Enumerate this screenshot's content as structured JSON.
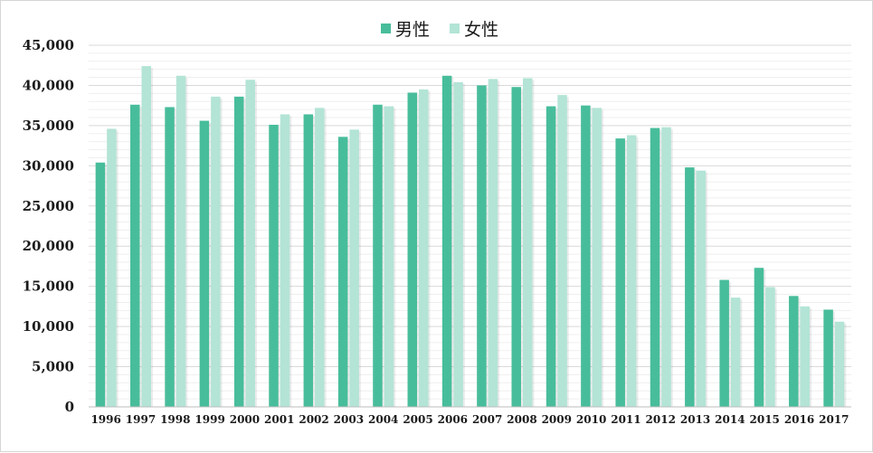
{
  "chart_data": {
    "type": "bar",
    "categories": [
      "1996",
      "1997",
      "1998",
      "1999",
      "2000",
      "2001",
      "2002",
      "2003",
      "2004",
      "2005",
      "2006",
      "2007",
      "2008",
      "2009",
      "2010",
      "2011",
      "2012",
      "2013",
      "2014",
      "2015",
      "2016",
      "2017"
    ],
    "series": [
      {
        "name": "男性",
        "color": "#48bd9b",
        "values": [
          30400,
          37600,
          37300,
          35600,
          38600,
          35100,
          36400,
          33600,
          37600,
          39100,
          41200,
          40000,
          39800,
          37400,
          37500,
          33400,
          34700,
          29800,
          15800,
          17300,
          13800,
          12100
        ]
      },
      {
        "name": "女性",
        "color": "#b3e4d6",
        "values": [
          34600,
          42400,
          41200,
          38600,
          40700,
          36400,
          37200,
          34500,
          37400,
          39500,
          40400,
          40800,
          40900,
          38800,
          37200,
          33800,
          34800,
          29400,
          13600,
          14900,
          12500,
          10600
        ]
      }
    ],
    "ylim": [
      0,
      45000
    ],
    "yticks": [
      "0",
      "5,000",
      "10,000",
      "15,000",
      "20,000",
      "25,000",
      "30,000",
      "35,000",
      "40,000",
      "45,000"
    ],
    "grid": true,
    "legend_position": "top-center"
  }
}
